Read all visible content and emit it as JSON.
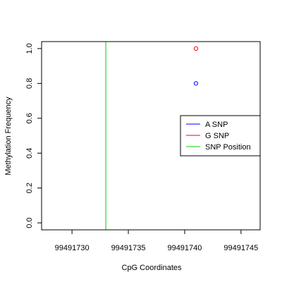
{
  "chart_data": {
    "type": "scatter",
    "title": "",
    "xlabel": "CpG Coordinates",
    "ylabel": "Methylation Frequency",
    "xlim": [
      99491727.3,
      99491746.7
    ],
    "ylim": [
      -0.04,
      1.04
    ],
    "x_ticks": [
      99491730,
      99491735,
      99491740,
      99491745
    ],
    "x_tick_labels": [
      "99491730",
      "99491735",
      "99491740",
      "99491745"
    ],
    "y_ticks": [
      0.0,
      0.2,
      0.4,
      0.6,
      0.8,
      1.0
    ],
    "y_tick_labels": [
      "0.0",
      "0.2",
      "0.4",
      "0.6",
      "0.8",
      "1.0"
    ],
    "grid": false,
    "legend_position": "right",
    "series": [
      {
        "name": "A SNP",
        "color": "#0000ff",
        "marker": "open-circle",
        "points": [
          {
            "x": 99491741,
            "y": 0.8
          }
        ]
      },
      {
        "name": "G SNP",
        "color": "#ff0000",
        "marker": "open-circle",
        "points": [
          {
            "x": 99491741,
            "y": 1.0
          }
        ]
      }
    ],
    "vlines": [
      {
        "name": "SNP Position",
        "color": "#00cc00",
        "x": 99491733
      }
    ]
  }
}
